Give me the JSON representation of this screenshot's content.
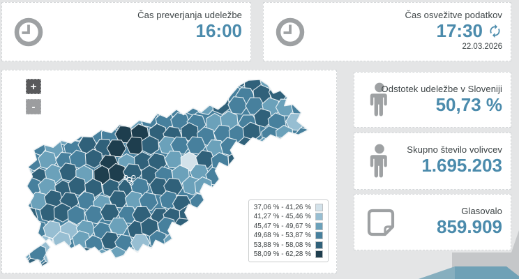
{
  "cards": {
    "check_time": {
      "title": "Čas preverjanja udeležbe",
      "value": "16:00"
    },
    "refresh_time": {
      "title": "Čas osvežitve podatkov",
      "value": "17:30",
      "date": "22.03.2026"
    },
    "turnout": {
      "title": "Odstotek udeležbe v Sloveniji",
      "value": "50,73 %"
    },
    "voters": {
      "title": "Skupno število volivcev",
      "value": "1.695.203"
    },
    "voted": {
      "title": "Glasovalo",
      "value": "859.909"
    }
  },
  "map": {
    "zoom_in_label": "+",
    "zoom_out_label": "-",
    "legend": [
      {
        "label": "37,06 % - 41,26 %",
        "color": "#d3e2ea"
      },
      {
        "label": "41,27 % - 45,46 %",
        "color": "#97bed2"
      },
      {
        "label": "45,47 % - 49,67 %",
        "color": "#6ba1ba"
      },
      {
        "label": "49,68 % - 53,87 %",
        "color": "#47809d"
      },
      {
        "label": "53,88 % - 58,08 %",
        "color": "#30617a"
      },
      {
        "label": "58,09 % - 62,28 %",
        "color": "#1e3e4e"
      }
    ]
  },
  "chart_data": {
    "type": "choropleth",
    "region": "Slovenia, municipalities by voter turnout",
    "bins": [
      "37,06 % - 41,26 %",
      "41,27 % - 45,46 %",
      "45,47 % - 49,67 %",
      "49,68 % - 53,87 %",
      "53,88 % - 58,08 %",
      "58,09 % - 62,28 %"
    ],
    "bin_colors": [
      "#d3e2ea",
      "#97bed2",
      "#6ba1ba",
      "#47809d",
      "#30617a",
      "#1e3e4e"
    ],
    "summary": {
      "turnout_percent": "50,73 %",
      "total_voters": "1.695.203",
      "voted": "859.909"
    }
  },
  "colors": {
    "accent": "#4b8bac",
    "icon_gray": "#9ea1a3",
    "deco_gray": "#c5c7c9",
    "deco_teal": "#6fa1b6",
    "deco_teal_light": "#87afbf"
  }
}
